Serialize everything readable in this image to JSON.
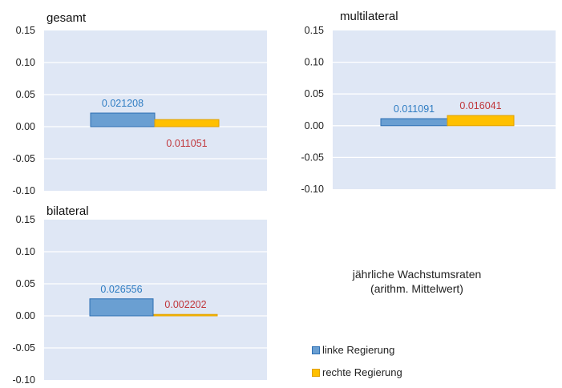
{
  "chart_data": [
    {
      "type": "bar",
      "title": "gesamt",
      "categories": [
        "linke Regierung",
        "rechte Regierung"
      ],
      "values": [
        0.021208,
        0.011051
      ],
      "value_labels": [
        "0.021208",
        "0.011051"
      ],
      "yticks": [
        "0.15",
        "0.10",
        "0.05",
        "0.00",
        "-0.05",
        "-0.10"
      ],
      "ylim": [
        -0.1,
        0.15
      ],
      "grid": true
    },
    {
      "type": "bar",
      "title": "multilateral",
      "categories": [
        "linke Regierung",
        "rechte Regierung"
      ],
      "values": [
        0.011091,
        0.016041
      ],
      "value_labels": [
        "0.011091",
        "0.016041"
      ],
      "yticks": [
        "0.15",
        "0.10",
        "0.05",
        "0.00",
        "-0.05",
        "-0.10"
      ],
      "ylim": [
        -0.1,
        0.15
      ],
      "grid": true
    },
    {
      "type": "bar",
      "title": "bilateral",
      "categories": [
        "linke Regierung",
        "rechte Regierung"
      ],
      "values": [
        0.026556,
        0.002202
      ],
      "value_labels": [
        "0.026556",
        "0.002202"
      ],
      "yticks": [
        "0.15",
        "0.10",
        "0.05",
        "0.00",
        "-0.05",
        "-0.10"
      ],
      "ylim": [
        -0.1,
        0.15
      ],
      "grid": true
    }
  ],
  "caption": {
    "line1": "jährliche Wachstumsraten",
    "line2": "(arithm. Mittelwert)"
  },
  "legend": {
    "placement": "bottom-right",
    "items": [
      {
        "label": "linke Regierung",
        "color": "#6a9fd2",
        "border": "#2d6fb3"
      },
      {
        "label": "rechte Regierung",
        "color": "#ffc000",
        "border": "#e0a000"
      }
    ]
  },
  "colors": {
    "plot_background": "#dfe7f5",
    "gridline": "#ffffff",
    "left_label": "#2e7cc2",
    "right_label": "#c0363b"
  }
}
